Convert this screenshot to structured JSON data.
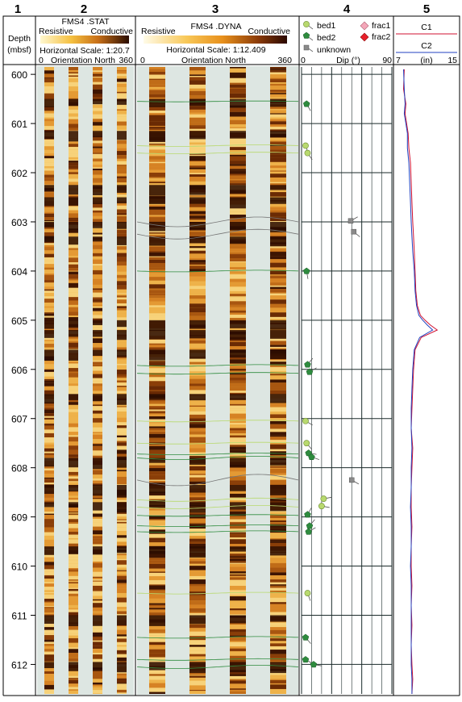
{
  "track_numbers": [
    "1",
    "2",
    "3",
    "4",
    "5"
  ],
  "depth": {
    "title": "Depth",
    "unit": "(mbsf)",
    "top": 599.85,
    "bottom": 612.6,
    "ticks": [
      "600",
      "601",
      "602",
      "603",
      "604",
      "605",
      "606",
      "607",
      "608",
      "609",
      "610",
      "611",
      "612"
    ]
  },
  "stat": {
    "title": "FMS4 .STAT",
    "resistive": "Resistive",
    "conductive": "Conductive",
    "scale_label": "Horizontal Scale: 1:20.7",
    "orientation_min": "0",
    "orientation_label": "Orientation North",
    "orientation_max": "360"
  },
  "dyna": {
    "title": "FMS4 .DYNA",
    "resistive": "Resistive",
    "conductive": "Conductive",
    "scale_label": "Horizontal Scale:  1:12.409",
    "orientation_min": "0",
    "orientation_label": "Orientation North",
    "orientation_max": "360"
  },
  "dip": {
    "legend": {
      "bed1": "bed1",
      "bed2": "bed2",
      "unknown": "unknown",
      "frac1": "frac1",
      "frac2": "frac2"
    },
    "axis_min": "0",
    "axis_label": "Dip (°)",
    "axis_max": "90",
    "colors": {
      "bed1": "#b8d96e",
      "bed2": "#2e8b3e",
      "unknown": "#8a8a8a",
      "frac1": "#f4a7b9",
      "frac2": "#e8202a"
    },
    "picks": [
      {
        "type": "bed2",
        "depth": 600.6,
        "dip": 5,
        "azimuth": 150
      },
      {
        "type": "bed1",
        "depth": 601.45,
        "dip": 4,
        "azimuth": 160
      },
      {
        "type": "bed1",
        "depth": 601.6,
        "dip": 6,
        "azimuth": 145
      },
      {
        "type": "unknown",
        "depth": 602.98,
        "dip": 49,
        "azimuth": 60
      },
      {
        "type": "unknown",
        "depth": 603.2,
        "dip": 52,
        "azimuth": 130
      },
      {
        "type": "bed2",
        "depth": 604.0,
        "dip": 5,
        "azimuth": 170
      },
      {
        "type": "bed2",
        "depth": 605.9,
        "dip": 6,
        "azimuth": 40
      },
      {
        "type": "bed2",
        "depth": 606.05,
        "dip": 8,
        "azimuth": 60
      },
      {
        "type": "bed1",
        "depth": 607.05,
        "dip": 4,
        "azimuth": 120
      },
      {
        "type": "bed1",
        "depth": 607.5,
        "dip": 5,
        "azimuth": 140
      },
      {
        "type": "bed2",
        "depth": 607.7,
        "dip": 7,
        "azimuth": 100
      },
      {
        "type": "bed2",
        "depth": 607.78,
        "dip": 10,
        "azimuth": 110
      },
      {
        "type": "unknown",
        "depth": 608.25,
        "dip": 50,
        "azimuth": 120
      },
      {
        "type": "bed1",
        "depth": 608.63,
        "dip": 22,
        "azimuth": 80
      },
      {
        "type": "bed1",
        "depth": 608.78,
        "dip": 20,
        "azimuth": 100
      },
      {
        "type": "bed2",
        "depth": 608.95,
        "dip": 6,
        "azimuth": 30
      },
      {
        "type": "bed2",
        "depth": 609.18,
        "dip": 8,
        "azimuth": 40
      },
      {
        "type": "bed2",
        "depth": 609.3,
        "dip": 7,
        "azimuth": 60
      },
      {
        "type": "bed1",
        "depth": 610.55,
        "dip": 6,
        "azimuth": 160
      },
      {
        "type": "bed2",
        "depth": 611.45,
        "dip": 4,
        "azimuth": 140
      },
      {
        "type": "bed2",
        "depth": 611.9,
        "dip": 4,
        "azimuth": 120
      },
      {
        "type": "bed2",
        "depth": 612.0,
        "dip": 12,
        "azimuth": 100
      }
    ]
  },
  "caliper": {
    "c1": "C1",
    "c2": "C2",
    "axis_min": "7",
    "axis_unit": "(in)",
    "axis_max": "15",
    "xmin": 7,
    "xmax": 15,
    "c1_color": "#d01030",
    "c2_color": "#2040c0",
    "chart_data": {
      "type": "line",
      "series": [
        {
          "name": "C1",
          "depth": [
            599.9,
            600.3,
            600.6,
            600.8,
            601.0,
            601.2,
            601.5,
            601.8,
            602.2,
            602.6,
            603.0,
            603.3,
            603.6,
            604.0,
            604.4,
            604.7,
            604.9,
            605.0,
            605.1,
            605.2,
            605.35,
            605.6,
            606.0,
            606.4,
            606.8,
            607.2,
            607.6,
            608.0,
            608.4,
            608.8,
            609.2,
            609.6,
            610.0,
            610.4,
            610.8,
            611.2,
            611.6,
            612.0,
            612.3,
            612.6
          ],
          "value": [
            8.1,
            8.0,
            8.3,
            8.2,
            8.4,
            8.6,
            8.7,
            8.9,
            9.0,
            9.1,
            9.2,
            9.3,
            9.4,
            9.5,
            9.6,
            9.8,
            10.2,
            10.8,
            11.5,
            12.4,
            10.3,
            9.5,
            9.3,
            9.2,
            9.1,
            9.0,
            9.2,
            9.1,
            9.0,
            9.0,
            9.1,
            9.0,
            9.0,
            9.1,
            9.0,
            9.1,
            9.0,
            9.1,
            9.2,
            9.1
          ]
        },
        {
          "name": "C2",
          "depth": [
            599.9,
            600.3,
            600.6,
            600.8,
            601.0,
            601.2,
            601.5,
            601.8,
            602.2,
            602.6,
            603.0,
            603.3,
            603.6,
            604.0,
            604.4,
            604.7,
            604.9,
            605.0,
            605.1,
            605.2,
            605.35,
            605.6,
            606.0,
            606.4,
            606.8,
            607.2,
            607.6,
            608.0,
            608.4,
            608.8,
            609.2,
            609.6,
            610.0,
            610.4,
            610.8,
            611.2,
            611.6,
            612.0,
            612.3,
            612.6
          ],
          "value": [
            8.0,
            8.1,
            8.2,
            8.1,
            8.3,
            8.5,
            8.5,
            8.7,
            8.8,
            8.9,
            9.0,
            9.1,
            9.2,
            9.4,
            9.5,
            9.7,
            10.0,
            10.5,
            11.1,
            11.8,
            10.1,
            9.4,
            9.2,
            9.1,
            9.0,
            9.0,
            9.1,
            9.0,
            9.0,
            8.9,
            9.0,
            9.0,
            8.9,
            9.0,
            9.0,
            9.0,
            9.0,
            9.0,
            9.1,
            9.1
          ]
        }
      ]
    }
  }
}
